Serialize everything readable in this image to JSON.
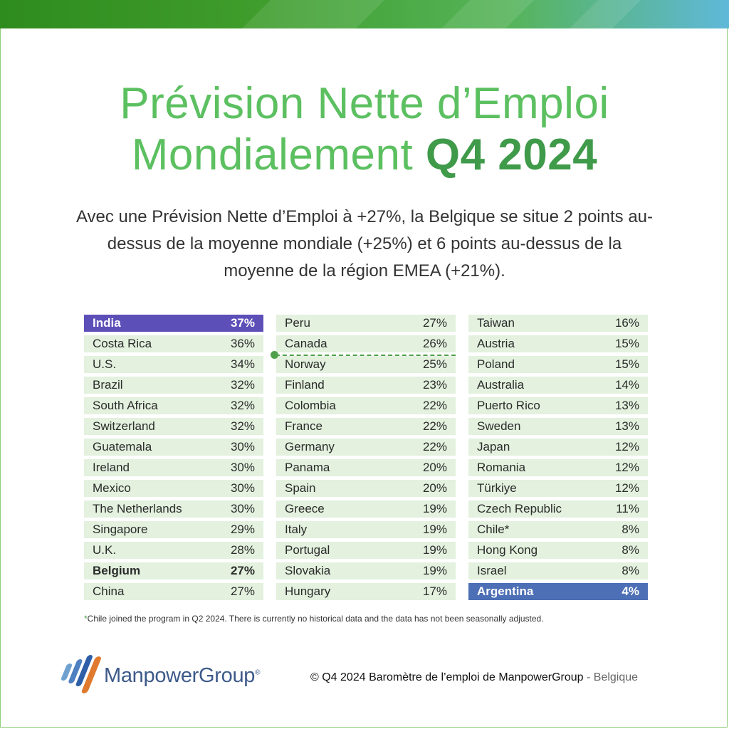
{
  "header": {
    "title_line1": "Prévision Nette d’Emploi",
    "title_line2_prefix": "Mondialement",
    "title_line2_highlight": "Q4 2024",
    "subtitle": "Avec une Prévision Nette d’Emploi à +27%, la Belgique se situe 2 points au-dessus de la moyenne mondiale (+25%) et 6 points au-dessus de la moyenne de la région EMEA (+21%)."
  },
  "colors": {
    "title_green": "#5cc060",
    "highlight_green": "#3f9a4a",
    "row_bg": "#e3f1de",
    "top_purple": "#5d4fb8",
    "bottom_blue": "#4d6fb5"
  },
  "columns": [
    [
      {
        "country": "India",
        "value": "37%"
      },
      {
        "country": "Costa Rica",
        "value": "36%"
      },
      {
        "country": "U.S.",
        "value": "34%"
      },
      {
        "country": "Brazil",
        "value": "32%"
      },
      {
        "country": "South Africa",
        "value": "32%"
      },
      {
        "country": "Switzerland",
        "value": "32%"
      },
      {
        "country": "Guatemala",
        "value": "30%"
      },
      {
        "country": "Ireland",
        "value": "30%"
      },
      {
        "country": "Mexico",
        "value": "30%"
      },
      {
        "country": "The Netherlands",
        "value": "30%"
      },
      {
        "country": "Singapore",
        "value": "29%"
      },
      {
        "country": "U.K.",
        "value": "28%"
      },
      {
        "country": "Belgium",
        "value": "27%"
      },
      {
        "country": "China",
        "value": "27%"
      }
    ],
    [
      {
        "country": "Peru",
        "value": "27%"
      },
      {
        "country": "Canada",
        "value": "26%"
      },
      {
        "country": "Norway",
        "value": "25%"
      },
      {
        "country": "Finland",
        "value": "23%"
      },
      {
        "country": "Colombia",
        "value": "22%"
      },
      {
        "country": "France",
        "value": "22%"
      },
      {
        "country": "Germany",
        "value": "22%"
      },
      {
        "country": "Panama",
        "value": "20%"
      },
      {
        "country": "Spain",
        "value": "20%"
      },
      {
        "country": "Greece",
        "value": "19%"
      },
      {
        "country": "Italy",
        "value": "19%"
      },
      {
        "country": "Portugal",
        "value": "19%"
      },
      {
        "country": "Slovakia",
        "value": "19%"
      },
      {
        "country": "Hungary",
        "value": "17%"
      }
    ],
    [
      {
        "country": "Taiwan",
        "value": "16%"
      },
      {
        "country": "Austria",
        "value": "15%"
      },
      {
        "country": "Poland",
        "value": "15%"
      },
      {
        "country": "Australia",
        "value": "14%"
      },
      {
        "country": "Puerto Rico",
        "value": "13%"
      },
      {
        "country": "Sweden",
        "value": "13%"
      },
      {
        "country": "Japan",
        "value": "12%"
      },
      {
        "country": "Romania",
        "value": "12%"
      },
      {
        "country": "Türkiye",
        "value": "12%"
      },
      {
        "country": "Czech Republic",
        "value": "11%"
      },
      {
        "country": "Chile*",
        "value": "8%"
      },
      {
        "country": "Hong Kong",
        "value": "8%"
      },
      {
        "country": "Israel",
        "value": "8%"
      },
      {
        "country": "Argentina",
        "value": "4%"
      }
    ]
  ],
  "footnote": {
    "asterisk": "*",
    "text": "Chile joined the program in Q2 2024. There is currently no historical data and the data has not been seasonally adjusted."
  },
  "footer": {
    "logo_text": "ManpowerGroup",
    "logo_mark": "®",
    "copyright_main": "© Q4 2024 Baromètre de l’emploi de ManpowerGroup",
    "copyright_sep": " - ",
    "copyright_region": "Belgique"
  }
}
